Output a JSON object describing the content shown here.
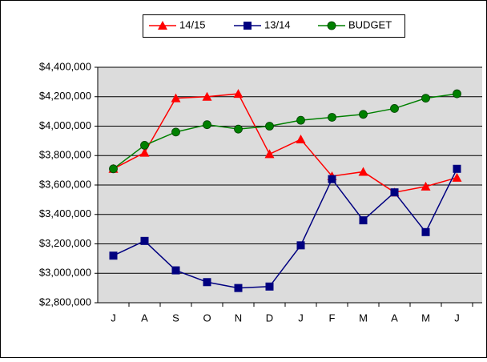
{
  "chart_data": {
    "type": "line",
    "categories": [
      "J",
      "A",
      "S",
      "O",
      "N",
      "D",
      "J",
      "F",
      "M",
      "A",
      "M",
      "J"
    ],
    "series": [
      {
        "name": "14/15",
        "color": "#ff0000",
        "marker": "triangle",
        "values": [
          3710000,
          3820000,
          4190000,
          4200000,
          4220000,
          3810000,
          3910000,
          3660000,
          3690000,
          3550000,
          3590000,
          3650000
        ]
      },
      {
        "name": "13/14",
        "color": "#000080",
        "marker": "square",
        "values": [
          3120000,
          3220000,
          3020000,
          2940000,
          2900000,
          2910000,
          3190000,
          3640000,
          3360000,
          3550000,
          3280000,
          3710000
        ]
      },
      {
        "name": "BUDGET",
        "color": "#008000",
        "marker": "circle",
        "values": [
          3710000,
          3870000,
          3960000,
          4010000,
          3980000,
          4000000,
          4040000,
          4060000,
          4080000,
          4120000,
          4190000,
          4220000
        ]
      }
    ],
    "ylim": [
      2800000,
      4400000
    ],
    "yticks": [
      {
        "value": 2800000,
        "label": "$2,800,000"
      },
      {
        "value": 3000000,
        "label": "$3,000,000"
      },
      {
        "value": 3200000,
        "label": "$3,200,000"
      },
      {
        "value": 3400000,
        "label": "$3,400,000"
      },
      {
        "value": 3600000,
        "label": "$3,600,000"
      },
      {
        "value": 3800000,
        "label": "$3,800,000"
      },
      {
        "value": 4000000,
        "label": "$4,000,000"
      },
      {
        "value": 4200000,
        "label": "$4,200,000"
      },
      {
        "value": 4400000,
        "label": "$4,400,000"
      }
    ],
    "grid": true,
    "legend": "top"
  }
}
